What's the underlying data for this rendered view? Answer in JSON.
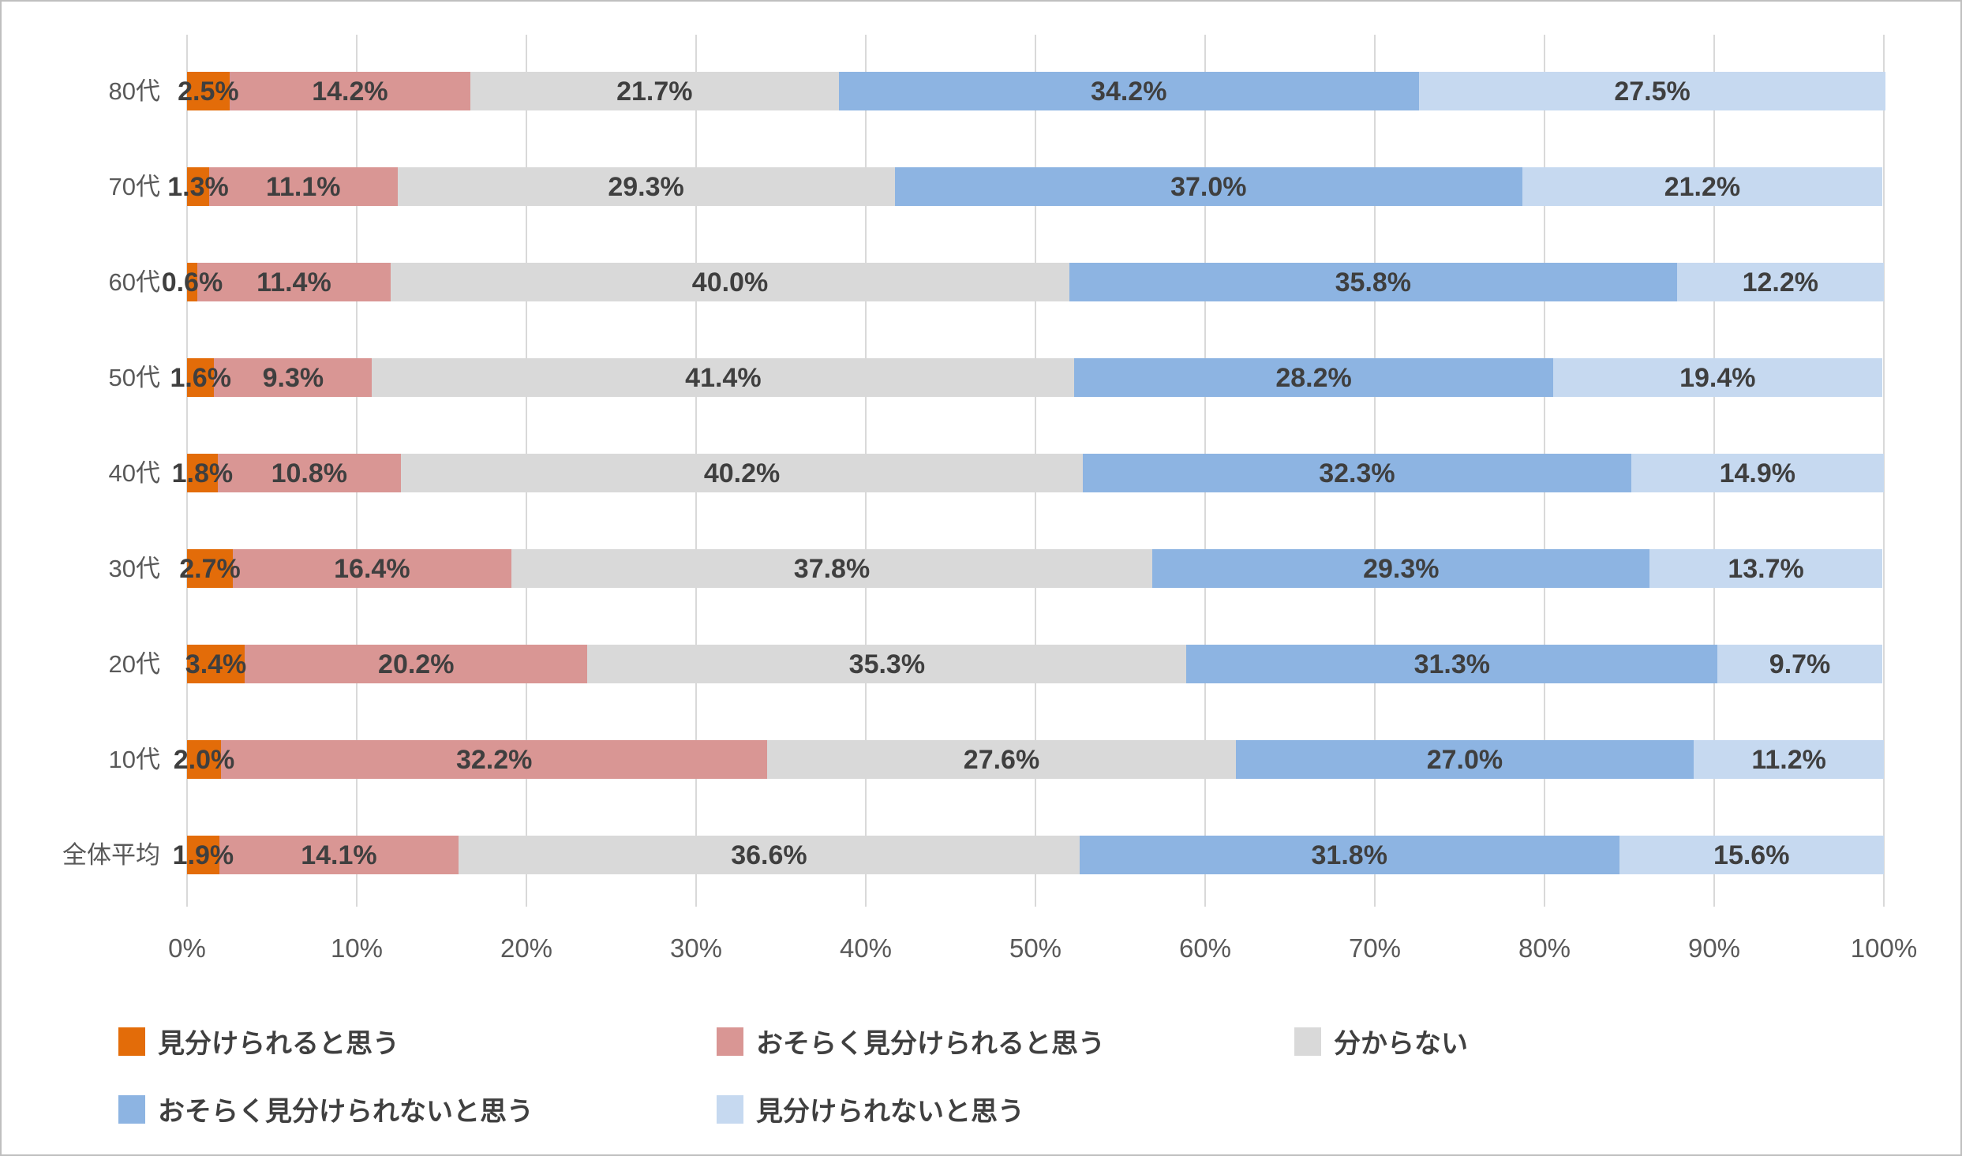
{
  "chart_data": {
    "type": "bar",
    "variant": "horizontal-stacked",
    "title": "",
    "categories": [
      "80代",
      "70代",
      "60代",
      "50代",
      "40代",
      "30代",
      "20代",
      "10代",
      "全体平均"
    ],
    "series": [
      {
        "name": "見分けられると思う",
        "color": "#E36C09",
        "values": [
          2.5,
          1.3,
          0.6,
          1.6,
          1.8,
          2.7,
          3.4,
          2.0,
          1.9
        ]
      },
      {
        "name": "おそらく見分けられると思う",
        "color": "#D99694",
        "values": [
          14.2,
          11.1,
          11.4,
          9.3,
          10.8,
          16.4,
          20.2,
          32.2,
          14.1
        ]
      },
      {
        "name": "分からない",
        "color": "#D9D9D9",
        "values": [
          21.7,
          29.3,
          40.0,
          41.4,
          40.2,
          37.8,
          35.3,
          27.6,
          36.6
        ]
      },
      {
        "name": "おそらく見分けられないと思う",
        "color": "#8DB4E2",
        "values": [
          34.2,
          37.0,
          35.8,
          28.2,
          32.3,
          29.3,
          31.3,
          27.0,
          31.8
        ]
      },
      {
        "name": "見分けられないと思う",
        "color": "#C6D9F0",
        "values": [
          27.5,
          21.2,
          12.2,
          19.4,
          14.9,
          13.7,
          9.7,
          11.2,
          15.6
        ]
      }
    ],
    "data_label_format": "one-decimal-percent",
    "x_axis": {
      "min": 0,
      "max": 100,
      "tick_step": 10,
      "tick_labels": [
        "0%",
        "10%",
        "20%",
        "30%",
        "40%",
        "50%",
        "60%",
        "70%",
        "80%",
        "90%",
        "100%"
      ]
    },
    "grid": true,
    "legend_position": "bottom"
  },
  "colors": {
    "data_label_text": "#3F3F3F",
    "axis_text": "#595959",
    "gridline": "#D9D9D9",
    "frame_border": "#BFBFBF",
    "background": "#FFFFFF",
    "legend_text": "#404040"
  }
}
